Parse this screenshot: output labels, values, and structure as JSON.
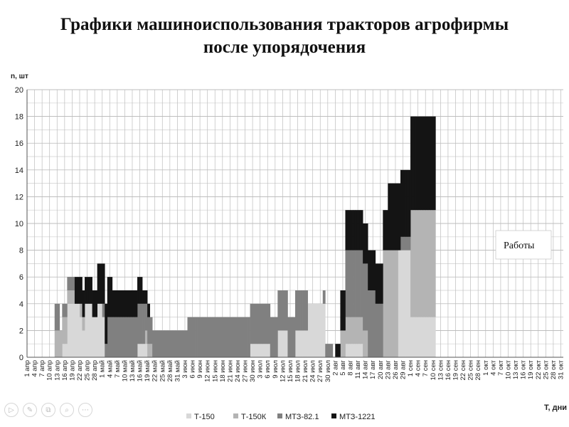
{
  "title_line1": "Графики машиноиспользования тракторов агрофирмы",
  "title_line2": "после упорядочения",
  "chart_data": {
    "type": "area",
    "ylabel": "n, шт",
    "xlabel": "T, дни",
    "ylim": [
      0,
      20
    ],
    "yticks": [
      0,
      2,
      4,
      6,
      8,
      10,
      12,
      14,
      16,
      18,
      20
    ],
    "grid": true,
    "x_tick_labels": [
      "1 апр",
      "4 апр",
      "7 апр",
      "10 апр",
      "13 апр",
      "16 апр",
      "19 апр",
      "22 апр",
      "25 апр",
      "28 апр",
      "1 май",
      "4 май",
      "7 май",
      "10 май",
      "13 май",
      "16 май",
      "19 май",
      "22 май",
      "25 май",
      "28 май",
      "31 май",
      "3 июн",
      "6 июн",
      "9 июн",
      "12 июн",
      "15 июн",
      "18 июн",
      "21 июн",
      "24 июн",
      "27 июн",
      "30 июн",
      "3 июл",
      "6 июл",
      "9 июл",
      "12 июл",
      "15 июл",
      "18 июл",
      "21 июл",
      "24 июл",
      "27 июл",
      "30 июл",
      "2 авг",
      "5 авг",
      "8 авг",
      "11 авг",
      "14 авг",
      "17 авг",
      "20 авг",
      "23 авг",
      "26 авг",
      "29 авг",
      "1 сен",
      "4 сен",
      "7 сен",
      "10 сен",
      "13 сен",
      "16 сен",
      "19 сен",
      "22 сен",
      "25 сен",
      "28 сен",
      "1 окт",
      "4 окт",
      "7 окт",
      "10 окт",
      "13 окт",
      "16 окт",
      "19 окт",
      "22 окт",
      "25 окт",
      "28 окт",
      "31 окт"
    ],
    "series": [
      {
        "name": "Т-150",
        "color": "#d8d8d8",
        "segments": [
          {
            "from": "15 апр",
            "to": "16 апр",
            "value": 1
          },
          {
            "from": "17 апр",
            "to": "21 апр",
            "value": 4
          },
          {
            "from": "22 апр",
            "to": "22 апр",
            "value": 3
          },
          {
            "from": "23 апр",
            "to": "23 апр",
            "value": 2
          },
          {
            "from": "24 апр",
            "to": "26 апр",
            "value": 4
          },
          {
            "from": "27 апр",
            "to": "28 апр",
            "value": 3
          },
          {
            "from": "29 апр",
            "to": "30 апр",
            "value": 4
          },
          {
            "from": "1 май",
            "to": "1 май",
            "value": 3
          },
          {
            "from": "15 май",
            "to": "18 май",
            "value": 1
          },
          {
            "from": "29 июн",
            "to": "6 июл",
            "value": 1
          },
          {
            "from": "10 июл",
            "to": "13 июл",
            "value": 2
          },
          {
            "from": "17 июл",
            "to": "21 июл",
            "value": 2
          },
          {
            "from": "22 июл",
            "to": "28 июл",
            "value": 4
          },
          {
            "from": "6 авг",
            "to": "12 авг",
            "value": 1
          },
          {
            "from": "27 авг",
            "to": "31 авг",
            "value": 8
          },
          {
            "from": "1 сен",
            "to": "10 сен",
            "value": 3
          }
        ]
      },
      {
        "name": "Т-150К",
        "color": "#b4b4b4",
        "segments": [
          {
            "from": "12 апр",
            "to": "14 апр",
            "value": 2
          },
          {
            "from": "15 апр",
            "to": "16 апр",
            "value": 2
          },
          {
            "from": "17 апр",
            "to": "19 апр",
            "value": 1
          },
          {
            "from": "22 апр",
            "to": "23 апр",
            "value": 1
          },
          {
            "from": "18 май",
            "to": "20 май",
            "value": 1
          },
          {
            "from": "4 авг",
            "to": "14 авг",
            "value": 2
          },
          {
            "from": "21 авг",
            "to": "26 авг",
            "value": 8
          },
          {
            "from": "1 сен",
            "to": "10 сен",
            "value": 8
          }
        ]
      },
      {
        "name": "МТЗ-82.1",
        "color": "#808080",
        "segments": [
          {
            "from": "12 апр",
            "to": "13 апр",
            "value": 2
          },
          {
            "from": "15 апр",
            "to": "19 апр",
            "value": 1
          },
          {
            "from": "1 май",
            "to": "2 май",
            "value": 1
          },
          {
            "from": "3 май",
            "to": "17 май",
            "value": 3
          },
          {
            "from": "18 май",
            "to": "3 июн",
            "value": 2
          },
          {
            "from": "4 июн",
            "to": "14 июн",
            "value": 3
          },
          {
            "from": "15 июн",
            "to": "21 июл",
            "value": 3
          },
          {
            "from": "28 июл",
            "to": "31 июл",
            "value": 1
          },
          {
            "from": "6 авг",
            "to": "17 авг",
            "value": 5
          },
          {
            "from": "18 авг",
            "to": "20 авг",
            "value": 4
          },
          {
            "from": "28 авг",
            "to": "31 авг",
            "value": 1
          }
        ]
      },
      {
        "name": "МТЗ-1221",
        "color": "#141414",
        "segments": [
          {
            "from": "20 апр",
            "to": "28 апр",
            "value": 2
          },
          {
            "from": "29 апр",
            "to": "4 май",
            "value": 3
          },
          {
            "from": "5 май",
            "to": "16 май",
            "value": 2
          },
          {
            "from": "17 май",
            "to": "19 май",
            "value": 1
          },
          {
            "from": "2 авг",
            "to": "3 авг",
            "value": 1
          },
          {
            "from": "4 авг",
            "to": "17 авг",
            "value": 3
          },
          {
            "from": "18 авг",
            "to": "22 авг",
            "value": 3
          },
          {
            "from": "23 авг",
            "to": "31 авг",
            "value": 5
          },
          {
            "from": "1 сен",
            "to": "10 сен",
            "value": 7
          }
        ]
      }
    ],
    "annotation": "Работы",
    "legend": "bottom"
  },
  "toolbar": {
    "icons": [
      "play-icon",
      "pen-icon",
      "copy-icon",
      "zoom-icon",
      "more-icon"
    ],
    "glyphs": [
      "▷",
      "✎",
      "⧉",
      "⌕",
      "⋯"
    ]
  }
}
